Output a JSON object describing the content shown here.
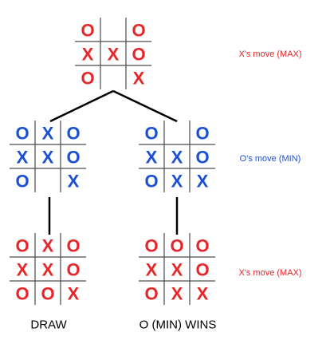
{
  "colors": {
    "max": "#e8262a",
    "min": "#1a4fd6",
    "grid": "#4a4a4a",
    "edge": "#000000"
  },
  "boards": [
    {
      "id": "root",
      "color": "max",
      "cells": [
        [
          "O",
          "",
          "O"
        ],
        [
          "X",
          "X",
          "O"
        ],
        [
          "O",
          "",
          "X"
        ]
      ]
    },
    {
      "id": "left-mid",
      "color": "min",
      "cells": [
        [
          "O",
          "X",
          "O"
        ],
        [
          "X",
          "X",
          "O"
        ],
        [
          "O",
          "",
          "X"
        ]
      ]
    },
    {
      "id": "right-mid",
      "color": "min",
      "cells": [
        [
          "O",
          "",
          "O"
        ],
        [
          "X",
          "X",
          "O"
        ],
        [
          "O",
          "X",
          "X"
        ]
      ]
    },
    {
      "id": "left-leaf",
      "color": "max",
      "cells": [
        [
          "O",
          "X",
          "O"
        ],
        [
          "X",
          "X",
          "O"
        ],
        [
          "O",
          "O",
          "X"
        ]
      ]
    },
    {
      "id": "right-leaf",
      "color": "max",
      "cells": [
        [
          "O",
          "O",
          "O"
        ],
        [
          "X",
          "X",
          "O"
        ],
        [
          "O",
          "X",
          "X"
        ]
      ]
    }
  ],
  "levels": [
    {
      "text": "X's move (MAX)",
      "color": "max"
    },
    {
      "text": "O's move (MIN)",
      "color": "min"
    },
    {
      "text": "X's move (MAX)",
      "color": "max"
    }
  ],
  "outcomes": {
    "left": "DRAW",
    "right": "O (MIN) WINS"
  }
}
